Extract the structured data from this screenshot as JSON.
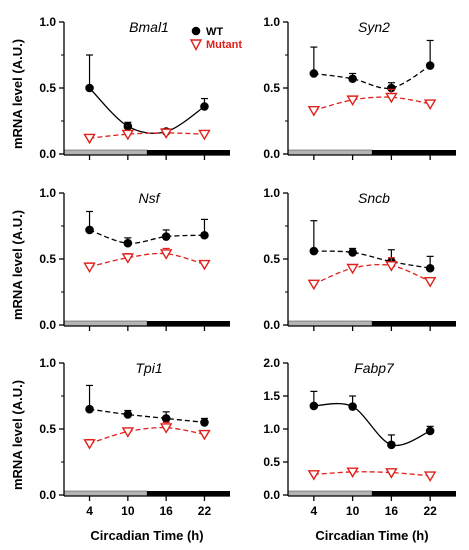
{
  "colors": {
    "wt": "#000000",
    "mutant": "#e0201b",
    "light_bar": "#b4b4b4",
    "dark_bar": "#000000"
  },
  "legend": {
    "wt": "WT",
    "mutant": "Mutant"
  },
  "xlabel": "Circadian Time (h)",
  "ylabel": "mRNA level (A.U.)",
  "chart_data": [
    {
      "type": "line",
      "title": "Bmal1",
      "x": [
        4,
        10,
        16,
        22
      ],
      "ylim": [
        0,
        1.0
      ],
      "yticks": [
        "0.0",
        "0.5",
        "1.0"
      ],
      "fit_style": "solid",
      "series": [
        {
          "name": "WT",
          "values": [
            0.5,
            0.21,
            0.17,
            0.36
          ],
          "err": [
            0.25,
            0.03,
            0.02,
            0.06
          ]
        },
        {
          "name": "Mutant",
          "values": [
            0.12,
            0.15,
            0.16,
            0.15
          ],
          "err": [
            0.01,
            0.01,
            0.01,
            0.01
          ]
        }
      ]
    },
    {
      "type": "line",
      "title": "Syn2",
      "x": [
        4,
        10,
        16,
        22
      ],
      "ylim": [
        0,
        1.0
      ],
      "yticks": [
        "0.0",
        "0.5",
        "1.0"
      ],
      "fit_style": "dashed",
      "series": [
        {
          "name": "WT",
          "values": [
            0.61,
            0.57,
            0.5,
            0.67
          ],
          "err": [
            0.2,
            0.04,
            0.04,
            0.19
          ]
        },
        {
          "name": "Mutant",
          "values": [
            0.33,
            0.41,
            0.43,
            0.38
          ],
          "err": [
            0.02,
            0.02,
            0.06,
            0.02
          ]
        }
      ]
    },
    {
      "type": "line",
      "title": "Nsf",
      "x": [
        4,
        10,
        16,
        22
      ],
      "ylim": [
        0,
        1.0
      ],
      "yticks": [
        "0.0",
        "0.5",
        "1.0"
      ],
      "fit_style": "dashed",
      "series": [
        {
          "name": "WT",
          "values": [
            0.72,
            0.62,
            0.67,
            0.68
          ],
          "err": [
            0.14,
            0.04,
            0.05,
            0.12
          ]
        },
        {
          "name": "Mutant",
          "values": [
            0.44,
            0.51,
            0.54,
            0.46
          ],
          "err": [
            0.03,
            0.03,
            0.04,
            0.02
          ]
        }
      ]
    },
    {
      "type": "line",
      "title": "Sncb",
      "x": [
        4,
        10,
        16,
        22
      ],
      "ylim": [
        0,
        1.0
      ],
      "yticks": [
        "0.0",
        "0.5",
        "1.0"
      ],
      "fit_style": "dashed",
      "series": [
        {
          "name": "WT",
          "values": [
            0.56,
            0.55,
            0.48,
            0.43
          ],
          "err": [
            0.23,
            0.03,
            0.09,
            0.09
          ]
        },
        {
          "name": "Mutant",
          "values": [
            0.31,
            0.43,
            0.45,
            0.33
          ],
          "err": [
            0.02,
            0.02,
            0.06,
            0.02
          ]
        }
      ]
    },
    {
      "type": "line",
      "title": "Tpi1",
      "x": [
        4,
        10,
        16,
        22
      ],
      "ylim": [
        0,
        1.0
      ],
      "yticks": [
        "0.0",
        "0.5",
        "1.0"
      ],
      "fit_style": "dashed",
      "series": [
        {
          "name": "WT",
          "values": [
            0.65,
            0.61,
            0.58,
            0.55
          ],
          "err": [
            0.18,
            0.03,
            0.05,
            0.03
          ]
        },
        {
          "name": "Mutant",
          "values": [
            0.39,
            0.48,
            0.51,
            0.46
          ],
          "err": [
            0.03,
            0.02,
            0.04,
            0.02
          ]
        }
      ]
    },
    {
      "type": "line",
      "title": "Fabp7",
      "x": [
        4,
        10,
        16,
        22
      ],
      "ylim": [
        0,
        2.0
      ],
      "yticks": [
        "0.0",
        "0.5",
        "1.0",
        "1.5",
        "2.0"
      ],
      "fit_style": "solid",
      "series": [
        {
          "name": "WT",
          "values": [
            1.35,
            1.34,
            0.76,
            0.97
          ],
          "err": [
            0.22,
            0.16,
            0.15,
            0.07
          ]
        },
        {
          "name": "Mutant",
          "values": [
            0.31,
            0.35,
            0.34,
            0.29
          ],
          "err": [
            0.02,
            0.02,
            0.02,
            0.02
          ]
        }
      ]
    }
  ]
}
